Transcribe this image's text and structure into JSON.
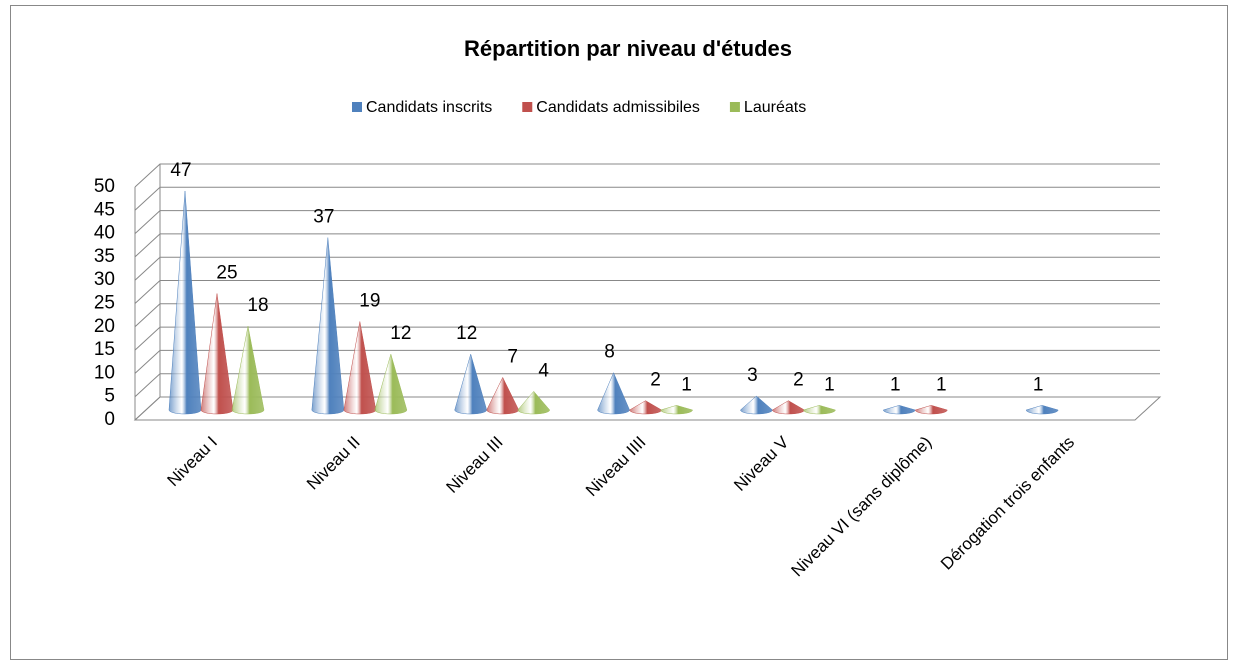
{
  "chart_data": {
    "type": "bar",
    "title": "Répartition par niveau d'études",
    "categories": [
      "Niveau I",
      "Niveau II",
      "Niveau III",
      "Niveau IIII",
      "Niveau V",
      "Niveau VI (sans diplôme)",
      "Dérogation trois enfants"
    ],
    "series": [
      {
        "name": "Candidats inscrits",
        "color": "#4f81bd",
        "values": [
          47,
          37,
          12,
          8,
          3,
          1,
          1
        ]
      },
      {
        "name": "Candidats admissibiles",
        "color": "#c0504d",
        "values": [
          25,
          19,
          7,
          2,
          2,
          1,
          null
        ]
      },
      {
        "name": "Lauréats",
        "color": "#9bbb59",
        "values": [
          18,
          12,
          4,
          1,
          1,
          null,
          null
        ]
      }
    ],
    "ylim": [
      0,
      50
    ],
    "yticks": [
      0,
      5,
      10,
      15,
      20,
      25,
      30,
      35,
      40,
      45,
      50
    ],
    "grid": true,
    "legend": "top"
  }
}
